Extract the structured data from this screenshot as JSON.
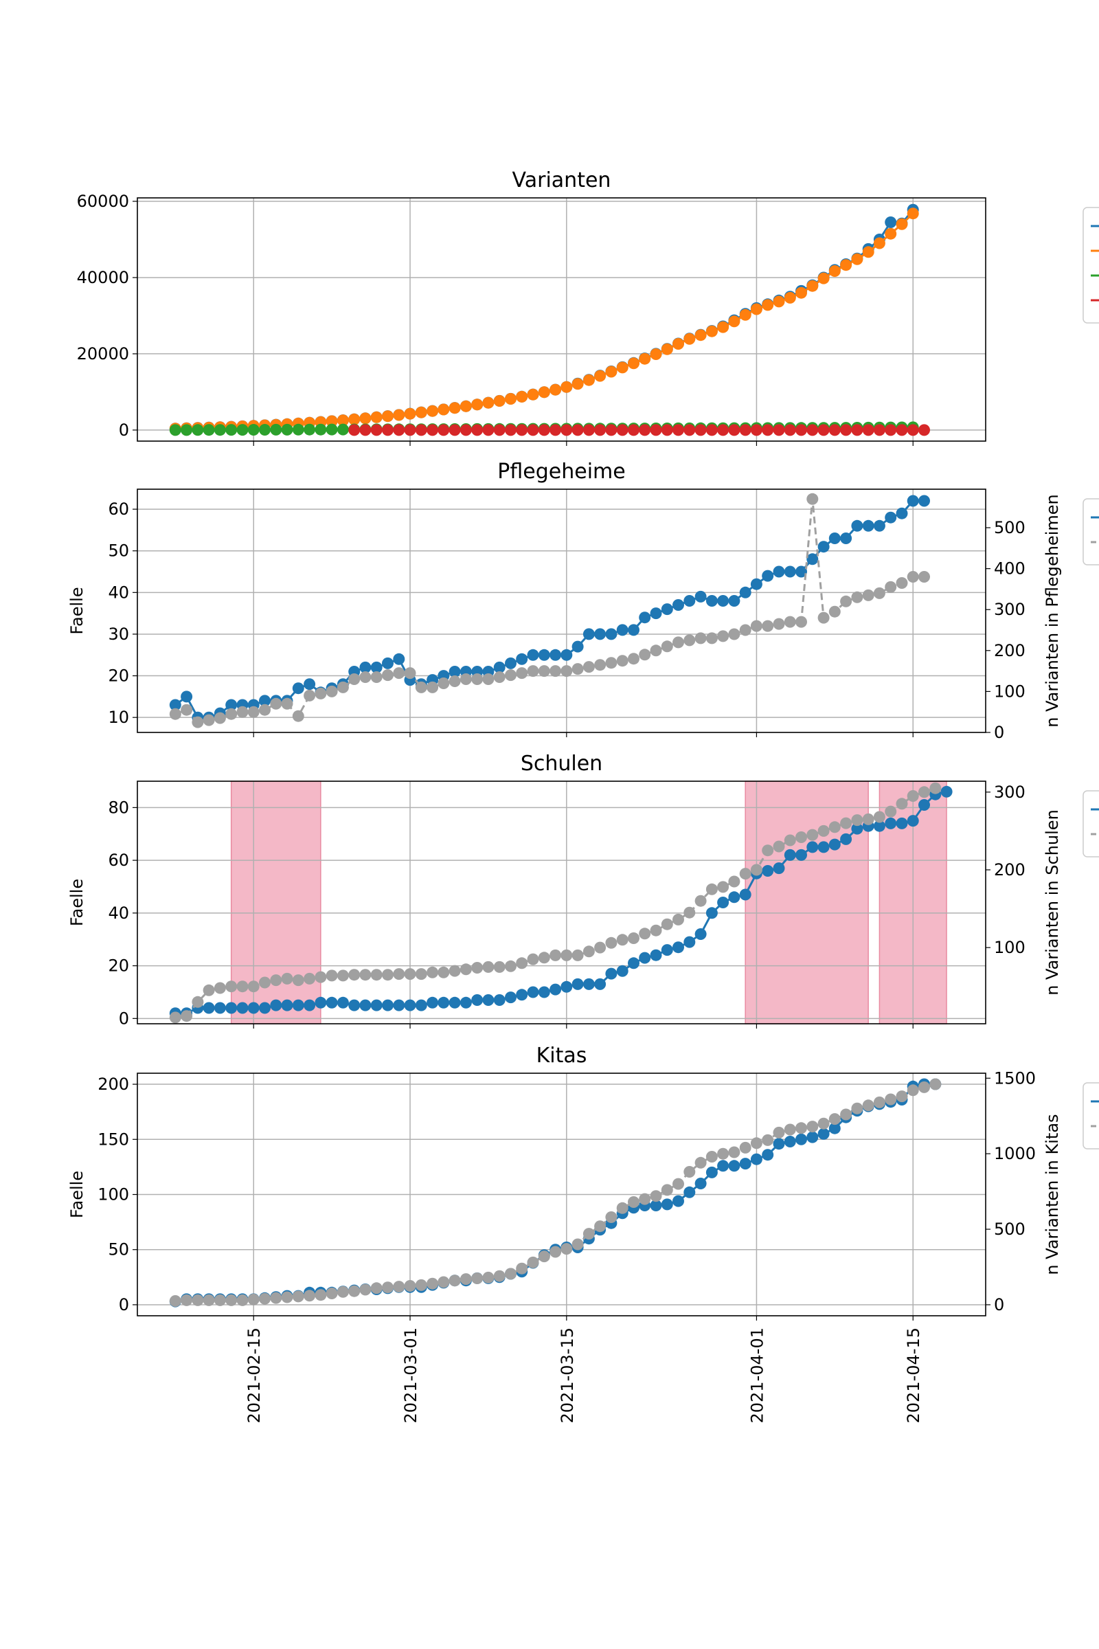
{
  "colors": {
    "c0": "#1f77b4",
    "c1": "#ff7f0e",
    "c2": "#2ca02c",
    "c3": "#d62728",
    "gray": "#a0a0a0",
    "shade": "#f0a0b4",
    "grid": "#b0b0b0"
  },
  "x_dates": [
    "2021-02-08",
    "2021-02-09",
    "2021-02-10",
    "2021-02-11",
    "2021-02-12",
    "2021-02-13",
    "2021-02-14",
    "2021-02-15",
    "2021-02-16",
    "2021-02-17",
    "2021-02-18",
    "2021-02-19",
    "2021-02-20",
    "2021-02-21",
    "2021-02-22",
    "2021-02-23",
    "2021-02-24",
    "2021-02-25",
    "2021-02-26",
    "2021-02-27",
    "2021-02-28",
    "2021-03-01",
    "2021-03-02",
    "2021-03-03",
    "2021-03-04",
    "2021-03-05",
    "2021-03-06",
    "2021-03-07",
    "2021-03-08",
    "2021-03-09",
    "2021-03-10",
    "2021-03-11",
    "2021-03-12",
    "2021-03-13",
    "2021-03-14",
    "2021-03-15",
    "2021-03-16",
    "2021-03-17",
    "2021-03-18",
    "2021-03-19",
    "2021-03-20",
    "2021-03-21",
    "2021-03-22",
    "2021-03-23",
    "2021-03-24",
    "2021-03-25",
    "2021-03-26",
    "2021-03-27",
    "2021-03-28",
    "2021-03-29",
    "2021-03-30",
    "2021-03-31",
    "2021-04-01",
    "2021-04-02",
    "2021-04-03",
    "2021-04-04",
    "2021-04-05",
    "2021-04-06",
    "2021-04-07",
    "2021-04-08",
    "2021-04-09",
    "2021-04-10",
    "2021-04-11",
    "2021-04-12",
    "2021-04-13",
    "2021-04-14",
    "2021-04-15",
    "2021-04-16",
    "2021-04-17"
  ],
  "x_ticks": [
    "2021-02-15",
    "2021-03-01",
    "2021-03-15",
    "2021-04-01",
    "2021-04-15"
  ],
  "chart_data": [
    {
      "type": "line",
      "title": "Varianten",
      "ylabel": "",
      "ylim": [
        -2900,
        60900
      ],
      "yticks": [
        0,
        20000,
        40000,
        60000
      ],
      "legend": "right",
      "series": [
        {
          "color": "c0",
          "start": "2021-02-08",
          "values": [
            400,
            480,
            570,
            660,
            760,
            870,
            990,
            1120,
            1260,
            1400,
            1560,
            1740,
            1930,
            2130,
            2350,
            2580,
            2830,
            3090,
            3370,
            3660,
            3970,
            4300,
            4650,
            5020,
            5410,
            5820,
            6250,
            6700,
            7170,
            7670,
            8200,
            8760,
            9340,
            9950,
            10600,
            11300,
            12200,
            13200,
            14300,
            15400,
            16500,
            17600,
            18800,
            20000,
            21300,
            22700,
            24000,
            25000,
            26000,
            27200,
            28800,
            30500,
            32000,
            33000,
            34000,
            35000,
            36500,
            38000,
            40000,
            42000,
            43500,
            45000,
            47500,
            50000,
            54500,
            54200,
            57800
          ]
        },
        {
          "color": "c1",
          "start": "2021-02-08",
          "values": [
            380,
            460,
            550,
            640,
            740,
            850,
            970,
            1100,
            1240,
            1380,
            1540,
            1720,
            1910,
            2110,
            2330,
            2560,
            2810,
            3070,
            3350,
            3640,
            3950,
            4280,
            4630,
            5000,
            5390,
            5800,
            6230,
            6680,
            7150,
            7650,
            8180,
            8740,
            9320,
            9930,
            10580,
            11280,
            12100,
            13100,
            14200,
            15300,
            16400,
            17500,
            18700,
            19900,
            21200,
            22600,
            23900,
            24900,
            25900,
            27000,
            28500,
            30200,
            31700,
            32800,
            33700,
            34700,
            36000,
            37800,
            39800,
            41700,
            43300,
            44800,
            46700,
            49000,
            51500,
            54000,
            56800
          ]
        },
        {
          "color": "c2",
          "start": "2021-02-08",
          "values": [
            0,
            10,
            20,
            30,
            40,
            50,
            60,
            70,
            80,
            90,
            100,
            110,
            120,
            130,
            140,
            150,
            160,
            170,
            180,
            190,
            200,
            210,
            220,
            230,
            240,
            250,
            260,
            270,
            280,
            290,
            300,
            310,
            320,
            330,
            340,
            350,
            360,
            370,
            380,
            390,
            400,
            410,
            420,
            430,
            440,
            450,
            460,
            470,
            480,
            490,
            500,
            510,
            520,
            530,
            540,
            550,
            560,
            570,
            580,
            590,
            600,
            620,
            640,
            660,
            680,
            700,
            730
          ]
        },
        {
          "color": "c3",
          "start": "2021-02-24",
          "values": [
            0,
            0,
            0,
            0,
            0,
            0,
            0,
            0,
            0,
            0,
            0,
            0,
            0,
            0,
            0,
            0,
            0,
            0,
            0,
            0,
            0,
            0,
            0,
            0,
            0,
            0,
            0,
            0,
            0,
            0,
            0,
            0,
            0,
            0,
            0,
            0,
            0,
            0,
            0,
            0,
            0,
            0,
            0,
            0,
            0,
            0,
            0,
            0,
            0,
            0,
            0,
            0
          ]
        }
      ]
    },
    {
      "type": "line",
      "title": "Pflegeheime",
      "ylabel": "Faelle",
      "ylabel_right": "n Varianten in Pflegeheimen",
      "ylim": [
        6.4,
        64.8
      ],
      "yticks": [
        10,
        20,
        30,
        40,
        50,
        60
      ],
      "y2lim": [
        0,
        594
      ],
      "y2ticks": [
        0,
        100,
        200,
        300,
        400,
        500
      ],
      "legend": "right",
      "series": [
        {
          "color": "c0",
          "axis": "left",
          "start": "2021-02-08",
          "values": [
            13,
            15,
            10,
            10,
            11,
            13,
            13,
            13,
            14,
            14,
            14,
            17,
            18,
            16,
            17,
            18,
            21,
            22,
            22,
            23,
            24,
            19,
            18,
            19,
            20,
            21,
            21,
            21,
            21,
            22,
            23,
            24,
            25,
            25,
            25,
            25,
            27,
            30,
            30,
            30,
            31,
            31,
            34,
            35,
            36,
            37,
            38,
            39,
            38,
            38,
            38,
            40,
            42,
            44,
            45,
            45,
            45,
            48,
            51,
            53,
            53,
            56,
            56,
            56,
            58,
            59,
            62,
            62
          ]
        },
        {
          "color": "gray",
          "axis": "right",
          "start": "2021-02-08",
          "values": [
            45,
            55,
            25,
            30,
            35,
            45,
            50,
            50,
            55,
            70,
            70,
            40,
            90,
            95,
            100,
            110,
            130,
            135,
            135,
            140,
            145,
            145,
            110,
            110,
            120,
            125,
            130,
            130,
            130,
            135,
            140,
            145,
            150,
            150,
            150,
            150,
            155,
            160,
            165,
            170,
            175,
            180,
            190,
            200,
            210,
            220,
            225,
            230,
            230,
            235,
            240,
            250,
            260,
            260,
            265,
            270,
            270,
            570,
            280,
            295,
            320,
            330,
            335,
            340,
            355,
            365,
            380,
            380
          ]
        }
      ]
    },
    {
      "type": "line",
      "title": "Schulen",
      "ylabel": "Faelle",
      "ylabel_right": "n Varianten in Schulen",
      "ylim": [
        -2,
        90
      ],
      "yticks": [
        0,
        20,
        40,
        60,
        80
      ],
      "y2lim": [
        2,
        314
      ],
      "y2ticks": [
        100,
        200,
        300
      ],
      "legend": "right",
      "shaded_ranges": [
        [
          "2021-02-13",
          "2021-02-21"
        ],
        [
          "2021-03-31",
          "2021-04-11"
        ],
        [
          "2021-04-12",
          "2021-04-18"
        ]
      ],
      "series": [
        {
          "color": "c0",
          "axis": "left",
          "start": "2021-02-08",
          "values": [
            2,
            2,
            4,
            4,
            4,
            4,
            4,
            4,
            4,
            5,
            5,
            5,
            5,
            6,
            6,
            6,
            5,
            5,
            5,
            5,
            5,
            5,
            5,
            6,
            6,
            6,
            6,
            7,
            7,
            7,
            8,
            9,
            10,
            10,
            11,
            12,
            13,
            13,
            13,
            17,
            18,
            21,
            23,
            24,
            26,
            27,
            29,
            32,
            40,
            44,
            46,
            47,
            55,
            56,
            57,
            62,
            62,
            65,
            65,
            66,
            68,
            72,
            73,
            73,
            74,
            74,
            75,
            81,
            85,
            86
          ]
        },
        {
          "color": "gray",
          "axis": "right",
          "start": "2021-02-08",
          "values": [
            10,
            12,
            30,
            45,
            48,
            50,
            50,
            50,
            55,
            58,
            60,
            58,
            60,
            62,
            64,
            64,
            65,
            65,
            65,
            65,
            66,
            66,
            66,
            68,
            68,
            70,
            72,
            74,
            75,
            75,
            76,
            80,
            85,
            87,
            90,
            90,
            90,
            95,
            100,
            106,
            110,
            112,
            118,
            122,
            130,
            136,
            145,
            160,
            175,
            178,
            185,
            195,
            200,
            225,
            230,
            238,
            242,
            245,
            250,
            255,
            260,
            264,
            265,
            268,
            275,
            285,
            295,
            300,
            305
          ]
        }
      ]
    },
    {
      "type": "line",
      "title": "Kitas",
      "ylabel": "Faelle",
      "ylabel_right": "n Varianten in Kitas",
      "ylim": [
        -10,
        210
      ],
      "yticks": [
        0,
        50,
        100,
        150,
        200
      ],
      "y2lim": [
        -73,
        1533
      ],
      "y2ticks": [
        0,
        500,
        1000,
        1500
      ],
      "legend": "right",
      "series": [
        {
          "color": "c0",
          "axis": "left",
          "start": "2021-02-08",
          "values": [
            3,
            5,
            5,
            5,
            5,
            5,
            5,
            5,
            6,
            7,
            8,
            8,
            11,
            11,
            11,
            12,
            13,
            14,
            14,
            15,
            16,
            16,
            16,
            18,
            20,
            22,
            22,
            24,
            24,
            25,
            28,
            30,
            38,
            45,
            50,
            52,
            52,
            60,
            68,
            74,
            83,
            88,
            90,
            90,
            91,
            94,
            102,
            110,
            120,
            126,
            126,
            128,
            132,
            136,
            146,
            148,
            150,
            152,
            155,
            160,
            170,
            176,
            180,
            182,
            184,
            186,
            198,
            200,
            200
          ]
        },
        {
          "color": "gray",
          "axis": "right",
          "start": "2021-02-08",
          "values": [
            25,
            30,
            30,
            30,
            30,
            30,
            30,
            35,
            40,
            45,
            50,
            55,
            60,
            65,
            75,
            85,
            90,
            100,
            110,
            115,
            120,
            125,
            130,
            140,
            150,
            160,
            170,
            175,
            180,
            190,
            205,
            240,
            280,
            320,
            350,
            370,
            400,
            470,
            520,
            580,
            640,
            680,
            700,
            720,
            760,
            800,
            880,
            940,
            980,
            1000,
            1010,
            1040,
            1070,
            1090,
            1140,
            1160,
            1170,
            1180,
            1200,
            1230,
            1260,
            1300,
            1320,
            1340,
            1360,
            1380,
            1420,
            1440,
            1460
          ]
        }
      ]
    }
  ]
}
